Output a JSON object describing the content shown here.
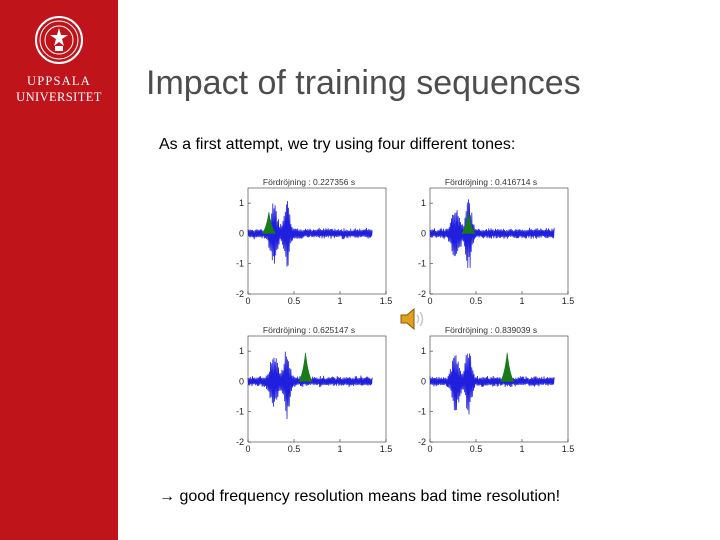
{
  "sidebar": {
    "university_line1": "UPPSALA",
    "university_line2": "UNIVERSITET",
    "logo_icon": "university-seal-icon",
    "color": "#c0141b"
  },
  "slide": {
    "title": "Impact of training sequences",
    "intro": "As a first attempt, we try using four different tones:",
    "conclusion": "→ good frequency resolution means bad time resolution!",
    "speaker_icon": "audio-speaker-icon"
  },
  "chart_data": [
    {
      "type": "line",
      "title": "Fördröjning : 0.227356 s",
      "xlim": [
        0,
        1.5
      ],
      "ylim": [
        -2,
        1.5
      ],
      "xticks": [
        "0",
        "0.5",
        "1",
        "1.5"
      ],
      "yticks": [
        "-2",
        "-1",
        "0",
        "1"
      ],
      "series": [
        {
          "color": "#1f1fdd",
          "kind": "waveform"
        },
        {
          "color": "#1a7a1a",
          "kind": "peak",
          "peak_x": 0.227,
          "peak_height": 0.7
        }
      ]
    },
    {
      "type": "line",
      "title": "Fördröjning : 0.416714 s",
      "xlim": [
        0,
        1.5
      ],
      "ylim": [
        -2,
        1.5
      ],
      "xticks": [
        "0",
        "0.5",
        "1",
        "1.5"
      ],
      "yticks": [
        "-2",
        "-1",
        "0",
        "1"
      ],
      "series": [
        {
          "color": "#1f1fdd",
          "kind": "waveform"
        },
        {
          "color": "#1a7a1a",
          "kind": "peak",
          "peak_x": 0.417,
          "peak_height": 0.7
        }
      ]
    },
    {
      "type": "line",
      "title": "Fördröjning : 0.625147 s",
      "xlim": [
        0,
        1.5
      ],
      "ylim": [
        -2,
        1.5
      ],
      "xticks": [
        "0",
        "0.5",
        "1",
        "1.5"
      ],
      "yticks": [
        "-2",
        "-1",
        "0",
        "1"
      ],
      "series": [
        {
          "color": "#1f1fdd",
          "kind": "waveform"
        },
        {
          "color": "#1a7a1a",
          "kind": "peak",
          "peak_x": 0.625,
          "peak_height": 0.95
        }
      ]
    },
    {
      "type": "line",
      "title": "Fördröjning : 0.839039 s",
      "xlim": [
        0,
        1.5
      ],
      "ylim": [
        -2,
        1.5
      ],
      "xticks": [
        "0",
        "0.5",
        "1",
        "1.5"
      ],
      "yticks": [
        "-2",
        "-1",
        "0",
        "1"
      ],
      "series": [
        {
          "color": "#1f1fdd",
          "kind": "waveform"
        },
        {
          "color": "#1a7a1a",
          "kind": "peak",
          "peak_x": 0.839,
          "peak_height": 0.95
        }
      ]
    }
  ]
}
